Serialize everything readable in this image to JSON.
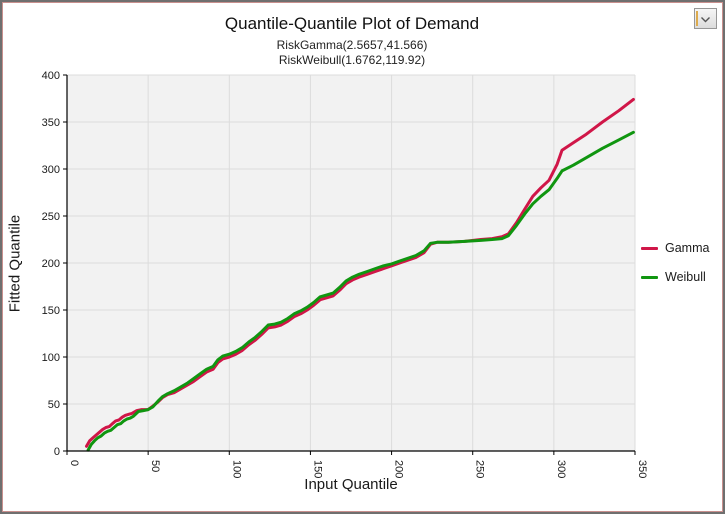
{
  "window": {
    "controls": {
      "dropdown_icon": "chevron-down"
    }
  },
  "chart_data": {
    "type": "line",
    "title": "Quantile-Quantile Plot of Demand",
    "subtitle1": "RiskGamma(2.5657,41.566)",
    "subtitle2": "RiskWeibull(1.6762,119.92)",
    "xlabel": "Input Quantile",
    "ylabel": "Fitted Quantile",
    "xlim": [
      0,
      350
    ],
    "ylim": [
      0,
      400
    ],
    "xticks": [
      0,
      50,
      100,
      150,
      200,
      250,
      300,
      350
    ],
    "yticks": [
      0,
      50,
      100,
      150,
      200,
      250,
      300,
      350,
      400
    ],
    "grid": true,
    "legend_position": "right",
    "plot_bg": "#f2f2f2",
    "grid_color": "#dcdcdc",
    "axis_color": "#000000",
    "series": [
      {
        "name": "Gamma",
        "color": "#d01648",
        "x": [
          12,
          14,
          16,
          18,
          20,
          22,
          24,
          26,
          28,
          30,
          32,
          34,
          36,
          38,
          40,
          43,
          46,
          50,
          53,
          56,
          59,
          62,
          66,
          70,
          74,
          78,
          82,
          86,
          90,
          93,
          96,
          100,
          104,
          108,
          112,
          116,
          120,
          124,
          128,
          132,
          136,
          140,
          144,
          148,
          152,
          156,
          160,
          164,
          168,
          172,
          176,
          180,
          185,
          190,
          195,
          200,
          205,
          210,
          215,
          220,
          224,
          228,
          235,
          245,
          255,
          262,
          268,
          272,
          277,
          282,
          287,
          292,
          297,
          302,
          305,
          312,
          320,
          330,
          340,
          349
        ],
        "y": [
          5,
          11,
          14,
          17,
          20,
          23,
          25,
          26,
          29,
          32,
          33,
          36,
          38,
          39,
          40,
          43,
          44,
          44,
          48,
          52,
          57,
          60,
          62,
          66,
          70,
          74,
          79,
          84,
          87,
          94,
          98,
          100,
          103,
          107,
          113,
          118,
          124,
          131,
          132,
          134,
          138,
          143,
          146,
          150,
          155,
          161,
          163,
          165,
          171,
          178,
          182,
          185,
          188,
          191,
          194,
          197,
          200,
          203,
          206,
          211,
          220,
          222,
          222,
          223,
          225,
          226,
          228,
          231,
          243,
          257,
          271,
          280,
          288,
          305,
          320,
          328,
          337,
          350,
          362,
          374
        ]
      },
      {
        "name": "Weibull",
        "color": "#109610",
        "x": [
          13,
          15,
          17,
          19,
          21,
          23,
          25,
          27,
          29,
          31,
          33,
          35,
          37,
          39,
          41,
          44,
          47,
          50,
          53,
          56,
          59,
          62,
          66,
          70,
          74,
          78,
          82,
          86,
          90,
          93,
          96,
          100,
          104,
          108,
          112,
          116,
          120,
          124,
          128,
          132,
          136,
          140,
          144,
          148,
          152,
          156,
          160,
          164,
          168,
          172,
          176,
          180,
          185,
          190,
          195,
          200,
          205,
          210,
          215,
          220,
          224,
          228,
          235,
          245,
          255,
          262,
          268,
          272,
          277,
          282,
          287,
          292,
          297,
          302,
          305,
          312,
          320,
          330,
          340,
          349
        ],
        "y": [
          1,
          7,
          11,
          14,
          16,
          19,
          21,
          22,
          25,
          28,
          29,
          32,
          34,
          35,
          37,
          42,
          43,
          44,
          47,
          53,
          58,
          61,
          64,
          68,
          72,
          77,
          82,
          87,
          90,
          97,
          101,
          103,
          106,
          110,
          116,
          121,
          127,
          134,
          135,
          137,
          141,
          146,
          149,
          153,
          158,
          164,
          166,
          168,
          174,
          181,
          185,
          188,
          191,
          194,
          197,
          199,
          202,
          205,
          208,
          213,
          221,
          222,
          222,
          223,
          224,
          225,
          226,
          229,
          240,
          252,
          263,
          271,
          278,
          290,
          298,
          304,
          312,
          322,
          331,
          339
        ]
      }
    ]
  },
  "legend": {
    "items": [
      {
        "label": "Gamma",
        "color": "#d01648"
      },
      {
        "label": "Weibull",
        "color": "#109610"
      }
    ]
  }
}
